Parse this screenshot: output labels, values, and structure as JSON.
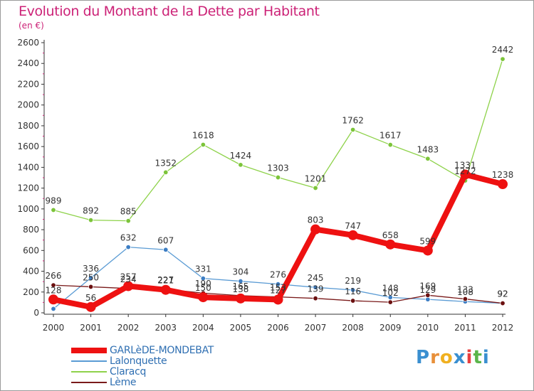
{
  "title": "Evolution du Montant de la Dette par Habitant",
  "subtitle": "(en €)",
  "logo": {
    "text": "Proxiti",
    "letters": [
      {
        "ch": "P",
        "color": "#3a8fd0"
      },
      {
        "ch": "r",
        "color": "#e8903a"
      },
      {
        "ch": "o",
        "color": "#f0b020"
      },
      {
        "ch": "x",
        "color": "#3a8fd0"
      },
      {
        "ch": "i",
        "color": "#e84040"
      },
      {
        "ch": "t",
        "color": "#5ab54a"
      },
      {
        "ch": "i",
        "color": "#3a8fd0"
      }
    ]
  },
  "chart_data": {
    "type": "line",
    "x": [
      "2000",
      "2001",
      "2002",
      "2003",
      "2004",
      "2005",
      "2006",
      "2007",
      "2008",
      "2009",
      "2010",
      "2011",
      "2012"
    ],
    "ylim": [
      0,
      2600
    ],
    "yticks": [
      "0",
      "200",
      "400",
      "600",
      "800",
      "1000",
      "1200",
      "1400",
      "1600",
      "1800",
      "2000",
      "2200",
      "2400",
      "2600"
    ],
    "grid": false,
    "legend_position": "bottom-left",
    "series": [
      {
        "name": "GARLèDE-MONDEBAT",
        "color": "#ee1111",
        "marker": "#ee1111",
        "values": [
          128,
          56,
          257,
          221,
          150,
          138,
          127,
          803,
          747,
          658,
          599,
          1331,
          1238
        ]
      },
      {
        "name": "Lalonquette",
        "color": "#5a9bd4",
        "marker": "#3d7ec4",
        "values": [
          38,
          336,
          632,
          607,
          331,
          304,
          276,
          245,
          219,
          148,
          129,
          108,
          92
        ]
      },
      {
        "name": "Claracq",
        "color": "#8ed24a",
        "marker": "#7cc43a",
        "values": [
          989,
          892,
          885,
          1352,
          1618,
          1424,
          1303,
          1201,
          1762,
          1617,
          1483,
          1272,
          2442
        ]
      },
      {
        "name": "Lème",
        "color": "#7a1a1a",
        "marker": "#6b1010",
        "values": [
          266,
          250,
          234,
          227,
          190,
          165,
          153,
          139,
          116,
          102,
          169,
          133,
          92
        ]
      }
    ],
    "data_labels": [
      [
        128,
        56,
        257,
        221,
        150,
        138,
        127,
        803,
        747,
        658,
        599,
        1331,
        1238
      ],
      [
        null,
        336,
        632,
        607,
        331,
        304,
        276,
        245,
        219,
        148,
        129,
        108,
        92
      ],
      [
        989,
        892,
        885,
        1352,
        1618,
        1424,
        1303,
        1201,
        1762,
        1617,
        1483,
        1272,
        2442
      ],
      [
        266,
        250,
        234,
        227,
        190,
        165,
        153,
        139,
        116,
        102,
        169,
        133,
        92
      ]
    ]
  }
}
